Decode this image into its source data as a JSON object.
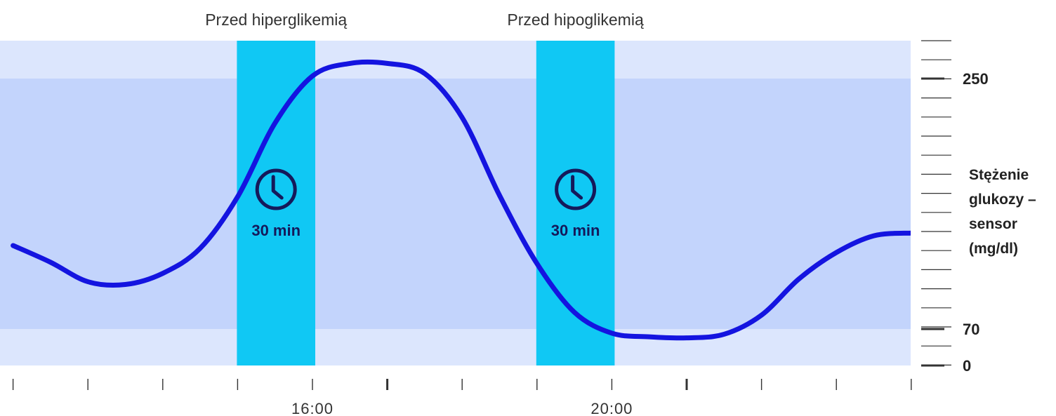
{
  "chart_data": {
    "type": "line",
    "title": "",
    "ylabel_lines": [
      "Stężenie",
      "glukozy –",
      "sensor",
      "(mg/dl)"
    ],
    "yticks": [
      0,
      70,
      250
    ],
    "target_range": [
      70,
      250
    ],
    "colors": {
      "line": "#1414e0",
      "outer_band": "#dce6fd",
      "target_band": "#c3d4fc",
      "alert_bar": "#10c8f4",
      "icon": "#15195a",
      "axis": "#333333"
    },
    "xticks": [
      "16:00",
      "20:00"
    ],
    "alerts": [
      {
        "label": "Przed hiperglikemią",
        "start": "15:00",
        "end": "16:00",
        "duration": "30 min",
        "icon": "clock-icon"
      },
      {
        "label": "Przed hipoglikemią",
        "start": "19:00",
        "end": "20:00",
        "duration": "30 min",
        "icon": "clock-icon"
      }
    ],
    "series": [
      {
        "x": [
          "12:00",
          "12:30",
          "13:00",
          "13:30",
          "14:00",
          "14:30",
          "15:00",
          "15:30",
          "16:00",
          "16:30",
          "17:00",
          "17:30",
          "18:00",
          "18:30",
          "19:00",
          "19:30",
          "20:00",
          "20:30",
          "21:00",
          "21:30",
          "22:00",
          "22:30",
          "23:00",
          "23:30",
          "24:00"
        ],
        "values": [
          130,
          118,
          104,
          102,
          110,
          128,
          165,
          218,
          252,
          262,
          262,
          254,
          222,
          166,
          117,
          82,
          62,
          55,
          53,
          60,
          80,
          106,
          125,
          137,
          139
        ]
      }
    ]
  }
}
